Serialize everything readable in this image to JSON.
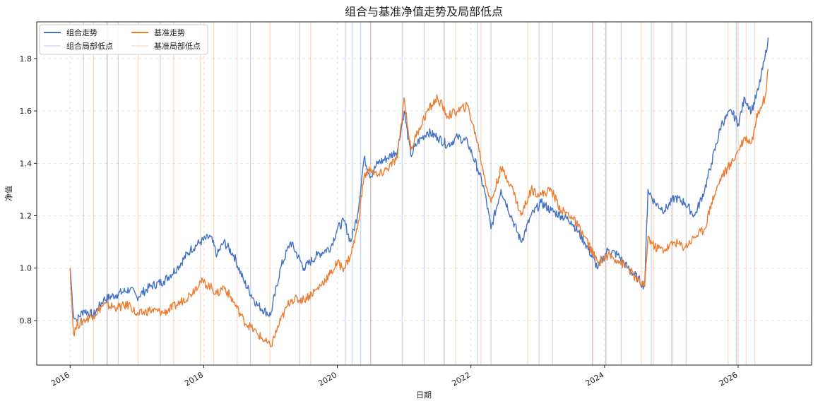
{
  "chart_data": {
    "type": "line",
    "title": "组合与基准净值走势及局部低点",
    "xlabel": "日期",
    "ylabel": "净值",
    "x_ticks": [
      "2016",
      "2018",
      "2020",
      "2022",
      "2024",
      "2026"
    ],
    "y_ticks": [
      "0.8",
      "1.0",
      "1.2",
      "1.4",
      "1.6",
      "1.8"
    ],
    "xlim": [
      2015.5,
      2027.1
    ],
    "ylim": [
      0.63,
      1.94
    ],
    "grid": true,
    "legend_position": "top-left",
    "series": [
      {
        "name": "组合走势",
        "color": "#4472C4",
        "x": [
          2016.0,
          2016.05,
          2016.1,
          2016.2,
          2016.35,
          2016.5,
          2016.7,
          2016.9,
          2017.0,
          2017.2,
          2017.4,
          2017.6,
          2017.8,
          2017.95,
          2018.1,
          2018.2,
          2018.3,
          2018.45,
          2018.6,
          2018.8,
          2019.0,
          2019.15,
          2019.3,
          2019.5,
          2019.7,
          2019.9,
          2020.0,
          2020.1,
          2020.2,
          2020.3,
          2020.4,
          2020.5,
          2020.6,
          2020.75,
          2020.9,
          2021.0,
          2021.1,
          2021.2,
          2021.35,
          2021.5,
          2021.65,
          2021.8,
          2021.95,
          2022.1,
          2022.2,
          2022.3,
          2022.45,
          2022.6,
          2022.75,
          2022.9,
          2023.05,
          2023.2,
          2023.35,
          2023.5,
          2023.7,
          2023.9,
          2024.05,
          2024.2,
          2024.35,
          2024.5,
          2024.6,
          2024.65,
          2024.75,
          2024.9,
          2025.05,
          2025.2,
          2025.35,
          2025.5,
          2025.6,
          2025.75,
          2025.9,
          2026.0,
          2026.1,
          2026.2,
          2026.3,
          2026.4,
          2026.45
        ],
        "values": [
          1.0,
          0.82,
          0.8,
          0.84,
          0.82,
          0.88,
          0.9,
          0.92,
          0.89,
          0.93,
          0.95,
          1.0,
          1.07,
          1.1,
          1.12,
          1.05,
          1.1,
          1.05,
          0.95,
          0.86,
          0.82,
          1.0,
          1.1,
          1.0,
          1.05,
          1.08,
          1.15,
          1.18,
          1.1,
          1.2,
          1.42,
          1.35,
          1.4,
          1.42,
          1.45,
          1.6,
          1.43,
          1.48,
          1.52,
          1.5,
          1.47,
          1.5,
          1.48,
          1.38,
          1.3,
          1.15,
          1.3,
          1.2,
          1.1,
          1.2,
          1.25,
          1.22,
          1.2,
          1.18,
          1.1,
          1.0,
          1.07,
          1.05,
          1.0,
          0.96,
          0.93,
          1.3,
          1.25,
          1.22,
          1.27,
          1.25,
          1.2,
          1.3,
          1.4,
          1.55,
          1.6,
          1.55,
          1.65,
          1.6,
          1.68,
          1.8,
          1.88
        ]
      },
      {
        "name": "基准走势",
        "color": "#ED7D31",
        "x": [
          2016.0,
          2016.05,
          2016.1,
          2016.2,
          2016.35,
          2016.5,
          2016.7,
          2016.9,
          2017.0,
          2017.2,
          2017.4,
          2017.6,
          2017.8,
          2017.95,
          2018.1,
          2018.2,
          2018.3,
          2018.45,
          2018.6,
          2018.8,
          2019.0,
          2019.15,
          2019.3,
          2019.5,
          2019.7,
          2019.9,
          2020.0,
          2020.1,
          2020.2,
          2020.3,
          2020.4,
          2020.5,
          2020.6,
          2020.75,
          2020.9,
          2021.0,
          2021.1,
          2021.2,
          2021.35,
          2021.5,
          2021.65,
          2021.8,
          2021.95,
          2022.1,
          2022.2,
          2022.3,
          2022.45,
          2022.6,
          2022.75,
          2022.9,
          2023.05,
          2023.2,
          2023.35,
          2023.5,
          2023.7,
          2023.9,
          2024.05,
          2024.2,
          2024.35,
          2024.5,
          2024.6,
          2024.65,
          2024.75,
          2024.9,
          2025.05,
          2025.2,
          2025.35,
          2025.5,
          2025.6,
          2025.75,
          2025.9,
          2026.0,
          2026.1,
          2026.2,
          2026.3,
          2026.4,
          2026.45
        ],
        "values": [
          1.0,
          0.75,
          0.78,
          0.8,
          0.82,
          0.86,
          0.85,
          0.86,
          0.82,
          0.84,
          0.83,
          0.86,
          0.9,
          0.95,
          0.93,
          0.9,
          0.93,
          0.87,
          0.8,
          0.75,
          0.7,
          0.8,
          0.88,
          0.88,
          0.92,
          0.98,
          1.02,
          1.0,
          1.05,
          1.15,
          1.35,
          1.38,
          1.35,
          1.38,
          1.42,
          1.65,
          1.45,
          1.52,
          1.6,
          1.65,
          1.58,
          1.6,
          1.62,
          1.48,
          1.35,
          1.25,
          1.38,
          1.32,
          1.2,
          1.3,
          1.28,
          1.3,
          1.22,
          1.2,
          1.12,
          1.02,
          1.05,
          1.03,
          1.0,
          0.95,
          0.93,
          1.12,
          1.08,
          1.07,
          1.1,
          1.08,
          1.12,
          1.15,
          1.25,
          1.35,
          1.4,
          1.45,
          1.5,
          1.48,
          1.6,
          1.65,
          1.76
        ]
      }
    ],
    "local_lows": [
      {
        "name": "组合局部低点",
        "color": "#4472C4",
        "x": [
          2016.2,
          2016.55,
          2016.72,
          2017.35,
          2018.7,
          2019.43,
          2020.12,
          2020.22,
          2020.35,
          2020.5,
          2020.97,
          2021.3,
          2021.6,
          2022.1,
          2022.3,
          2023.02,
          2023.22,
          2023.82,
          2024.02,
          2024.25,
          2024.7,
          2025.02,
          2025.22,
          2025.97
        ]
      },
      {
        "name": "基准局部低点",
        "color": "#ED7D31",
        "x": [
          2016.35,
          2016.56,
          2017.02,
          2017.55,
          2017.95,
          2018.15,
          2018.5,
          2018.99,
          2019.6,
          2020.5,
          2021.6,
          2021.77,
          2022.15,
          2022.85,
          2023.82,
          2024.02,
          2024.55,
          2024.73,
          2025.0,
          2025.85,
          2026.0,
          2026.12,
          2026.25
        ]
      }
    ]
  }
}
